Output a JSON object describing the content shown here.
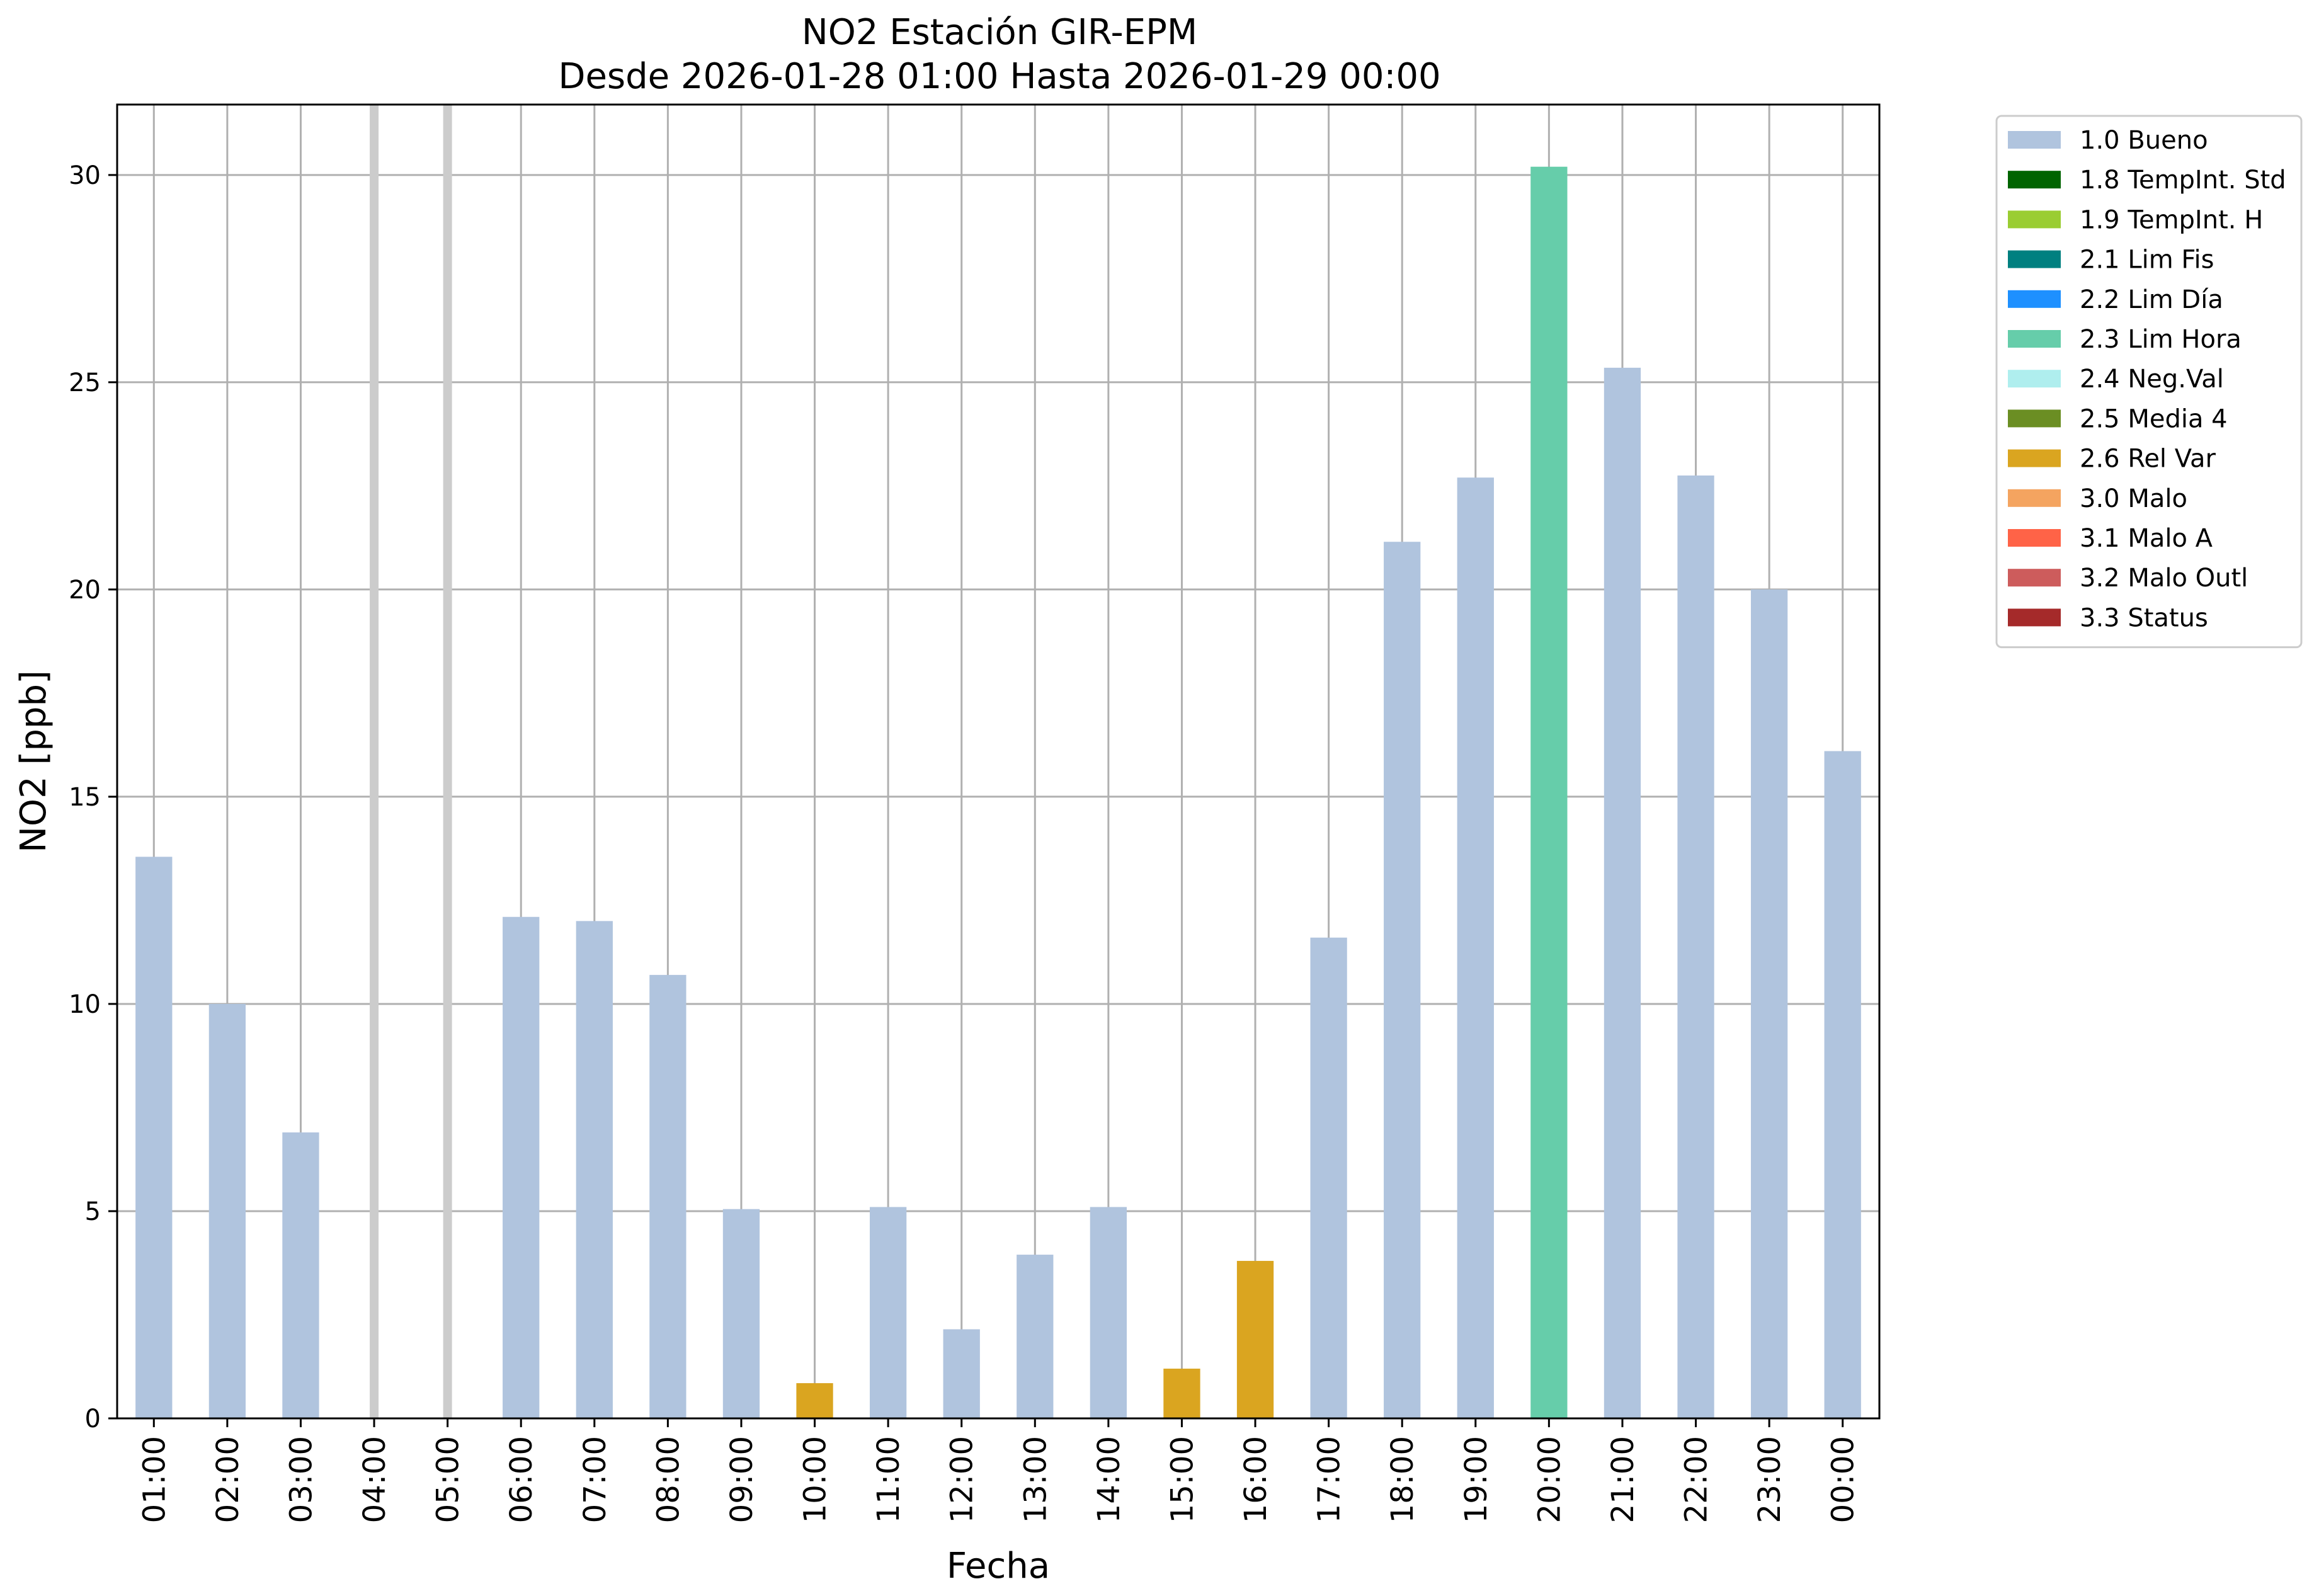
{
  "chart_data": {
    "type": "bar",
    "title": "NO2 Estación GIR-EPM",
    "subtitle": "Desde 2026-01-28 01:00 Hasta 2026-01-29 00:00",
    "xlabel": "Fecha",
    "ylabel": "NO2 [ppb]",
    "ylim": [
      0,
      31.7
    ],
    "yticks": [
      0,
      5,
      10,
      15,
      20,
      25,
      30
    ],
    "grid": true,
    "legend_position": "outside-top-right",
    "categories": [
      "01:00",
      "02:00",
      "03:00",
      "04:00",
      "05:00",
      "06:00",
      "07:00",
      "08:00",
      "09:00",
      "10:00",
      "11:00",
      "12:00",
      "13:00",
      "14:00",
      "15:00",
      "16:00",
      "17:00",
      "18:00",
      "19:00",
      "20:00",
      "21:00",
      "22:00",
      "23:00",
      "00:00"
    ],
    "values": [
      13.55,
      10.0,
      6.9,
      null,
      null,
      12.1,
      12.0,
      10.7,
      5.05,
      0.85,
      5.1,
      2.15,
      3.95,
      5.1,
      1.2,
      3.8,
      11.6,
      21.15,
      22.7,
      30.2,
      25.35,
      22.75,
      20.0,
      16.1
    ],
    "flags": [
      "1.0 Bueno",
      "1.0 Bueno",
      "1.0 Bueno",
      null,
      null,
      "1.0 Bueno",
      "1.0 Bueno",
      "1.0 Bueno",
      "1.0 Bueno",
      "2.6 Rel Var",
      "1.0 Bueno",
      "1.0 Bueno",
      "1.0 Bueno",
      "1.0 Bueno",
      "2.6 Rel Var",
      "2.6 Rel Var",
      "1.0 Bueno",
      "1.0 Bueno",
      "1.0 Bueno",
      "2.3 Lim Hora",
      "1.0 Bueno",
      "1.0 Bueno",
      "1.0 Bueno",
      "1.0 Bueno"
    ],
    "missing_marker_color": "#cccccc",
    "legend": [
      {
        "label": "1.0 Bueno",
        "color": "#b0c4de"
      },
      {
        "label": "1.8 TempInt. Std",
        "color": "#006400"
      },
      {
        "label": "1.9 TempInt. H",
        "color": "#9acd32"
      },
      {
        "label": "2.1 Lim Fis",
        "color": "#008080"
      },
      {
        "label": "2.2 Lim Día",
        "color": "#1e90ff"
      },
      {
        "label": "2.3 Lim Hora",
        "color": "#66cdaa"
      },
      {
        "label": "2.4 Neg.Val",
        "color": "#afeeee"
      },
      {
        "label": "2.5 Media 4",
        "color": "#6b8e23"
      },
      {
        "label": "2.6 Rel Var",
        "color": "#daa520"
      },
      {
        "label": "3.0 Malo",
        "color": "#f4a460"
      },
      {
        "label": "3.1 Malo A",
        "color": "#ff6347"
      },
      {
        "label": "3.2 Malo Outl",
        "color": "#cd5c5c"
      },
      {
        "label": "3.3 Status",
        "color": "#a52a2a"
      }
    ]
  }
}
